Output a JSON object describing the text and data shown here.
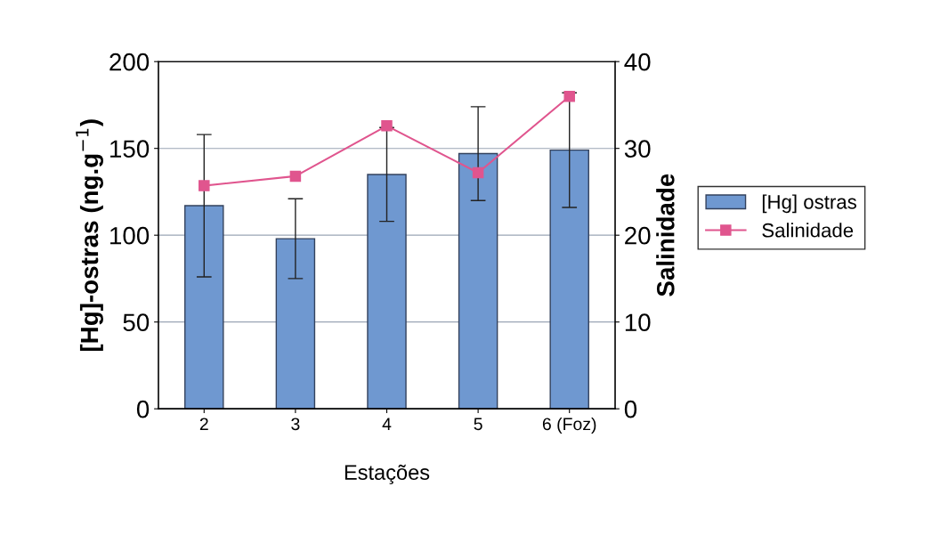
{
  "chart_data": {
    "type": "bar",
    "xlabel": "Estações",
    "ylabel": "[Hg]-ostras (ng.g$^{−1}$)",
    "y2label": "Salinidade",
    "categories": [
      "2",
      "3",
      "4",
      "5",
      "6 (Foz)"
    ],
    "series": [
      {
        "name": "[Hg] ostras",
        "color": "#6f98d0",
        "values": [
          117,
          98,
          135,
          147,
          149
        ],
        "errors": [
          41,
          23,
          27,
          27,
          33
        ]
      },
      {
        "name": "Salinidade",
        "type": "line",
        "axis": "y2",
        "color": "#e0558e",
        "marker": "square",
        "values": [
          25.7,
          26.8,
          32.6,
          27.2,
          36.0
        ]
      }
    ],
    "ylim": [
      0,
      200
    ],
    "yticks": [
      0,
      50,
      100,
      150,
      200
    ],
    "y2lim": [
      0,
      40
    ],
    "y2ticks": [
      0,
      10,
      20,
      30,
      40
    ],
    "grid": "y",
    "legend": "right"
  }
}
